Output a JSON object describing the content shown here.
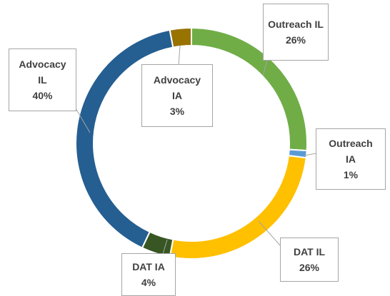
{
  "chart_data": {
    "type": "donut",
    "categories": [
      "Outreach IL",
      "Outreach IA",
      "DAT IL",
      "DAT IA",
      "Advocacy IL",
      "Advocacy IA"
    ],
    "values": [
      26,
      1,
      26,
      4,
      40,
      3
    ],
    "value_labels": [
      "26%",
      "1%",
      "26%",
      "4%",
      "40%",
      "3%"
    ],
    "colors": [
      "#70ad47",
      "#5b9bd5",
      "#ffc000",
      "#375623",
      "#255e91",
      "#997300"
    ]
  }
}
